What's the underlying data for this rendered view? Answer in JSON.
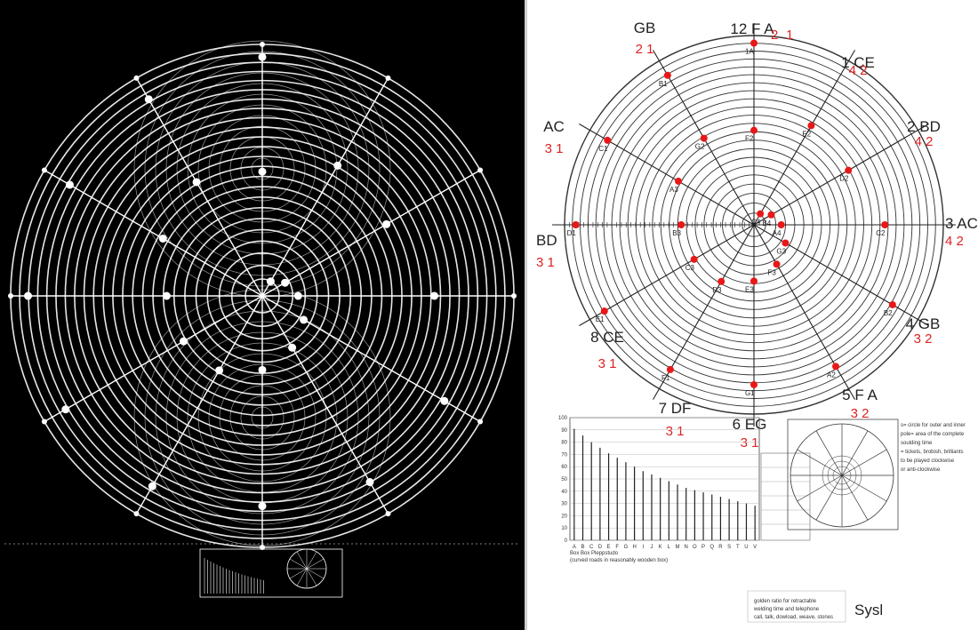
{
  "spokes": [
    {
      "label": "12 F A",
      "number": "1"
    },
    {
      "label": "1 CE",
      "number": "4 2"
    },
    {
      "label": "2 BD",
      "number": "4 2"
    },
    {
      "label": "3 AC",
      "number": "4 2"
    },
    {
      "label": "4 GB",
      "number": "3 2"
    },
    {
      "label": "5 F A",
      "number": "3 2"
    },
    {
      "label": "6 EG",
      "number": "3 1"
    },
    {
      "label": "7 DF",
      "number": "3 1"
    },
    {
      "label": "8 CE",
      "number": "3 1"
    },
    {
      "label": "BD",
      "number": "3 1"
    },
    {
      "label": "AC",
      "number": "3 1"
    },
    {
      "label": "GB",
      "number": "2 1"
    }
  ],
  "top_extra_number": "2",
  "points": [
    {
      "angle": 0,
      "r": 1.0,
      "label": "1A"
    },
    {
      "angle": 330,
      "r": 0.95,
      "label": "B1"
    },
    {
      "angle": 300,
      "r": 0.93,
      "label": "C1"
    },
    {
      "angle": 270,
      "r": 0.98,
      "label": "D1"
    },
    {
      "angle": 240,
      "r": 0.95,
      "label": "E1"
    },
    {
      "angle": 210,
      "r": 0.92,
      "label": "F1"
    },
    {
      "angle": 180,
      "r": 0.88,
      "label": "G1"
    },
    {
      "angle": 150,
      "r": 0.9,
      "label": "A2"
    },
    {
      "angle": 120,
      "r": 0.88,
      "label": "B2"
    },
    {
      "angle": 90,
      "r": 0.72,
      "label": "C2"
    },
    {
      "angle": 60,
      "r": 0.6,
      "label": "D2"
    },
    {
      "angle": 30,
      "r": 0.63,
      "label": "E2"
    },
    {
      "angle": 0,
      "r": 0.52,
      "label": "F2"
    },
    {
      "angle": 330,
      "r": 0.55,
      "label": "G2"
    },
    {
      "angle": 300,
      "r": 0.48,
      "label": "A3"
    },
    {
      "angle": 270,
      "r": 0.4,
      "label": "B3"
    },
    {
      "angle": 240,
      "r": 0.38,
      "label": "C3"
    },
    {
      "angle": 210,
      "r": 0.36,
      "label": "D3"
    },
    {
      "angle": 180,
      "r": 0.31,
      "label": "E3"
    },
    {
      "angle": 150,
      "r": 0.25,
      "label": "F3"
    },
    {
      "angle": 120,
      "r": 0.2,
      "label": "G3"
    },
    {
      "angle": 90,
      "r": 0.15,
      "label": "A4"
    },
    {
      "angle": 60,
      "r": 0.11,
      "label": "B4"
    },
    {
      "angle": 30,
      "r": 0.07,
      "label": "C4"
    }
  ],
  "bar_chart": {
    "values": [
      100,
      94,
      88,
      83,
      78,
      74,
      70,
      66,
      62,
      59,
      56,
      53,
      50,
      47,
      45,
      43,
      41,
      39,
      37,
      35,
      33,
      31
    ]
  },
  "axis_letters": [
    "A",
    "B",
    "C",
    "D",
    "E",
    "F",
    "G",
    "H",
    "I",
    "J",
    "K",
    "L",
    "M",
    "N",
    "O",
    "P",
    "Q",
    "R",
    "S",
    "T",
    "U",
    "V"
  ],
  "bar_caption": [
    "Box Box Pleppstudo",
    "(curved roads in reasonably wooden box)"
  ],
  "legend_notes": [
    "s= circle for outer and inner",
    "pole= area of the complete",
    "soulding time",
    "= tickets, brobish, brilliants",
    "to be played clockwise",
    "or anti-clockwise"
  ],
  "bottom_note": [
    "golden ratio for retractable",
    "welding time and telephone",
    "call, talk, dowload, weave, stones"
  ],
  "signature": "Sysl"
}
